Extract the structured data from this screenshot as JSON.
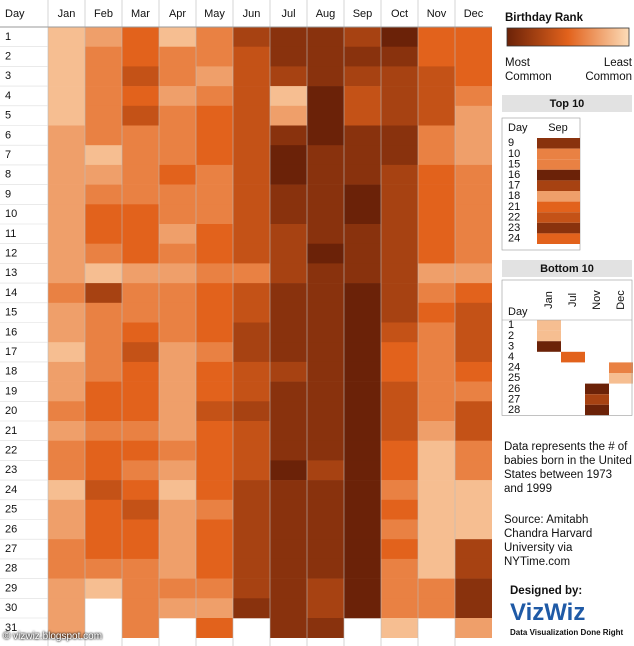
{
  "chart_data": {
    "type": "heatmap",
    "title": "Birthday Rank",
    "corner_label": "Day",
    "legend_low": "Most Common",
    "legend_high": "Least Common",
    "colors": [
      "#6b2208",
      "#e2621c",
      "#fcdcb8"
    ],
    "clim": [
      1,
      9
    ],
    "y": [
      1,
      2,
      3,
      4,
      5,
      6,
      7,
      8,
      9,
      10,
      11,
      12,
      13,
      14,
      15,
      16,
      17,
      18,
      19,
      20,
      21,
      22,
      23,
      24,
      25,
      26,
      27,
      28,
      29,
      30,
      31
    ],
    "series": [
      {
        "name": "Jan",
        "values": [
          8,
          8,
          8,
          8,
          8,
          7,
          7,
          7,
          7,
          7,
          7,
          7,
          7,
          6,
          7,
          7,
          8,
          7,
          7,
          6,
          7,
          6,
          6,
          8,
          7,
          7,
          6,
          6,
          7,
          7,
          7
        ]
      },
      {
        "name": "Feb",
        "values": [
          7,
          6,
          6,
          6,
          6,
          6,
          8,
          7,
          6,
          5,
          5,
          6,
          8,
          3,
          6,
          6,
          6,
          6,
          5,
          5,
          6,
          5,
          5,
          4,
          5,
          5,
          5,
          6,
          8,
          null,
          null
        ]
      },
      {
        "name": "Mar",
        "values": [
          5,
          5,
          4,
          5,
          4,
          6,
          6,
          6,
          6,
          5,
          5,
          5,
          7,
          6,
          6,
          5,
          4,
          5,
          5,
          5,
          6,
          5,
          6,
          5,
          4,
          5,
          5,
          6,
          6,
          6,
          6
        ]
      },
      {
        "name": "Apr",
        "values": [
          8,
          6,
          6,
          7,
          6,
          6,
          6,
          5,
          6,
          6,
          7,
          6,
          7,
          6,
          6,
          6,
          7,
          7,
          7,
          7,
          7,
          6,
          7,
          8,
          7,
          7,
          7,
          7,
          6,
          7,
          null
        ]
      },
      {
        "name": "May",
        "values": [
          6,
          6,
          7,
          6,
          5,
          5,
          5,
          6,
          6,
          6,
          5,
          5,
          6,
          5,
          5,
          5,
          6,
          5,
          5,
          4,
          5,
          5,
          5,
          5,
          6,
          5,
          5,
          5,
          6,
          7,
          5
        ]
      },
      {
        "name": "Jun",
        "values": [
          3,
          4,
          4,
          4,
          4,
          4,
          4,
          4,
          4,
          4,
          4,
          4,
          6,
          4,
          4,
          3,
          3,
          4,
          4,
          3,
          4,
          4,
          4,
          3,
          3,
          3,
          3,
          3,
          3,
          2,
          null
        ]
      },
      {
        "name": "Jul",
        "values": [
          2,
          2,
          3,
          8,
          7,
          2,
          1,
          1,
          2,
          2,
          3,
          3,
          3,
          2,
          2,
          2,
          2,
          3,
          2,
          2,
          2,
          2,
          1,
          2,
          2,
          2,
          2,
          2,
          2,
          2,
          2
        ]
      },
      {
        "name": "Aug",
        "values": [
          2,
          2,
          2,
          1,
          1,
          1,
          2,
          2,
          2,
          2,
          2,
          1,
          2,
          2,
          2,
          2,
          2,
          2,
          2,
          2,
          2,
          2,
          3,
          2,
          2,
          2,
          2,
          2,
          3,
          3,
          2
        ]
      },
      {
        "name": "Sep",
        "values": [
          3,
          2,
          3,
          4,
          4,
          2,
          2,
          2,
          1,
          1,
          2,
          2,
          2,
          1,
          1,
          1,
          1,
          1,
          1,
          1,
          1,
          1,
          1,
          1,
          1,
          1,
          1,
          1,
          1,
          1,
          null
        ]
      },
      {
        "name": "Oct",
        "values": [
          1,
          2,
          3,
          3,
          3,
          2,
          2,
          3,
          3,
          3,
          3,
          3,
          3,
          3,
          3,
          4,
          5,
          5,
          4,
          4,
          4,
          5,
          5,
          6,
          5,
          6,
          5,
          6,
          6,
          6,
          8
        ]
      },
      {
        "name": "Nov",
        "values": [
          5,
          5,
          4,
          4,
          4,
          6,
          6,
          5,
          5,
          5,
          5,
          5,
          7,
          6,
          5,
          6,
          6,
          6,
          6,
          6,
          7,
          8,
          8,
          8,
          8,
          8,
          8,
          8,
          6,
          6,
          null
        ]
      },
      {
        "name": "Dec",
        "values": [
          5,
          5,
          5,
          6,
          7,
          7,
          7,
          6,
          6,
          6,
          6,
          6,
          7,
          5,
          4,
          4,
          4,
          5,
          6,
          4,
          4,
          6,
          6,
          8,
          8,
          8,
          3,
          3,
          2,
          2,
          7
        ]
      }
    ]
  },
  "top10": {
    "title": "Top 10",
    "headers": [
      "Day",
      "Sep"
    ],
    "days": [
      9,
      10,
      15,
      16,
      17,
      18,
      21,
      22,
      23,
      24
    ],
    "values": [
      2,
      6,
      6,
      1,
      3,
      7,
      5,
      4,
      2,
      5
    ]
  },
  "bottom10": {
    "title": "Bottom 10",
    "row_header": "Day",
    "months": [
      "Jan",
      "Jul",
      "Nov",
      "Dec"
    ],
    "days": [
      1,
      2,
      3,
      4,
      24,
      25,
      26,
      27,
      28
    ],
    "values": [
      [
        8,
        null,
        null,
        null
      ],
      [
        8,
        null,
        null,
        null
      ],
      [
        1,
        null,
        null,
        null
      ],
      [
        null,
        5,
        null,
        null
      ],
      [
        null,
        null,
        null,
        6
      ],
      [
        null,
        null,
        null,
        8
      ],
      [
        null,
        null,
        1,
        null
      ],
      [
        null,
        null,
        3,
        null
      ],
      [
        null,
        null,
        1,
        null
      ]
    ]
  },
  "note": "Data represents the # of babies born in the United States between 1973 and 1999",
  "source": "Source: Amitabh Chandra Harvard University via NYTime.com",
  "credit": {
    "label": "Designed by:",
    "brand": "VizWiz",
    "tagline": "Data Visualization Done Right"
  },
  "watermark": "© vizwiz.blogspot.com"
}
